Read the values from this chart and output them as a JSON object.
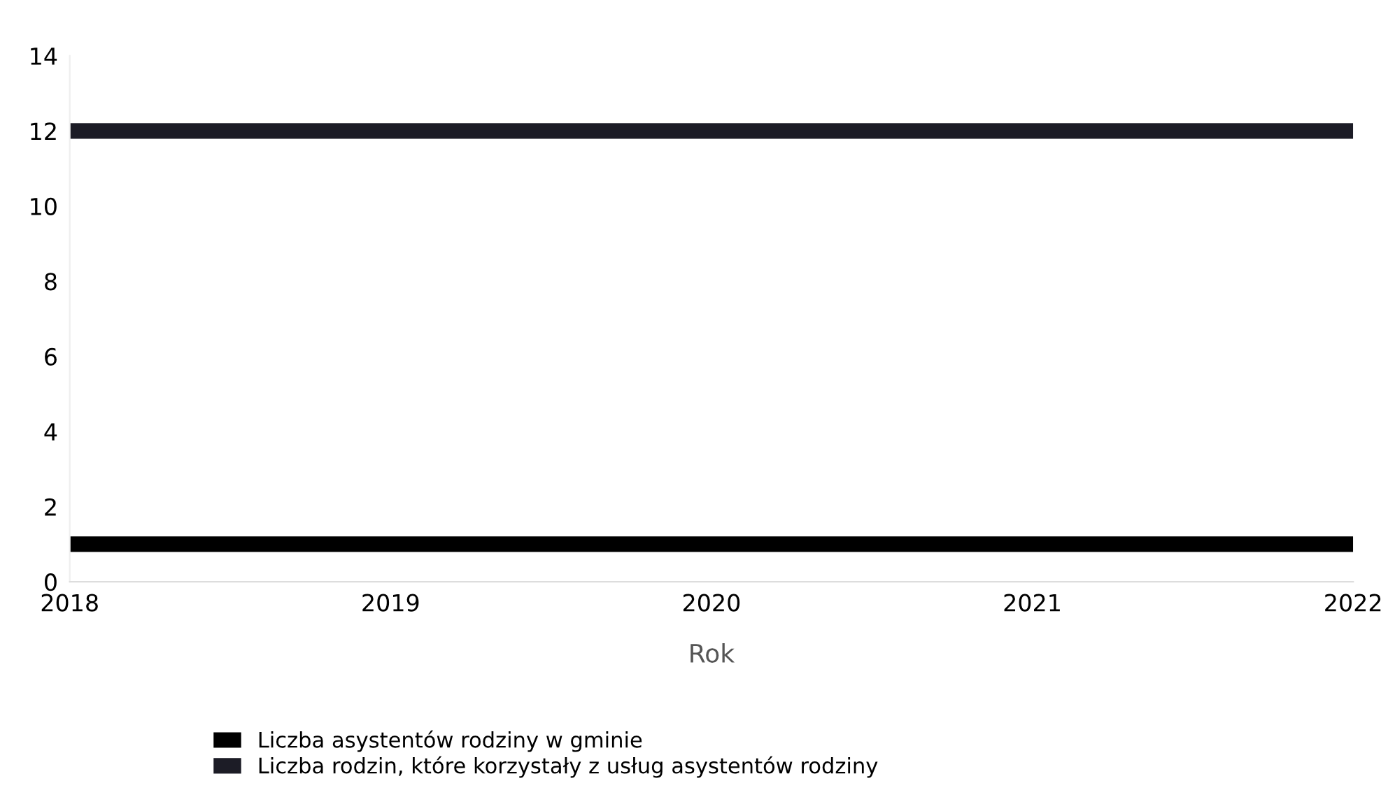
{
  "chart_data": {
    "type": "line",
    "xlabel": "Rok",
    "categories": [
      "2018",
      "2019",
      "2020",
      "2021",
      "2022"
    ],
    "series": [
      {
        "name": "Liczba asystentów rodziny w gminie",
        "color": "#000000",
        "values": [
          1,
          1,
          1,
          1,
          1
        ]
      },
      {
        "name": "Liczba rodzin, które korzystały z usług asystentów rodziny",
        "color": "#1c1c26",
        "values": [
          12,
          12,
          12,
          12,
          12
        ]
      }
    ],
    "ylim": [
      0,
      14
    ],
    "yticks": [
      0,
      2,
      4,
      6,
      8,
      10,
      12,
      14
    ],
    "grid": false,
    "legend": "bottom",
    "marker": "none",
    "line_style": "solid"
  }
}
